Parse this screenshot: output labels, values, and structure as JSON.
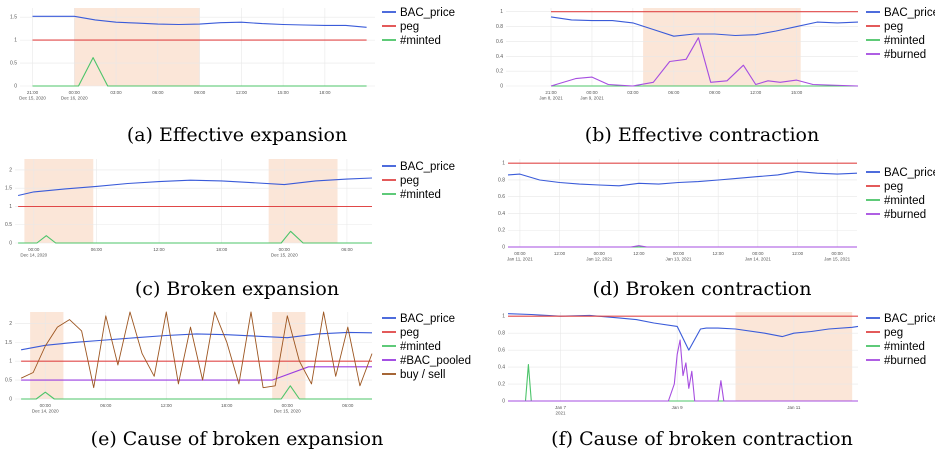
{
  "colors": {
    "BAC_price": "#3a5bd9",
    "peg": "#e04848",
    "minted": "#4cc46a",
    "burned": "#a64de0",
    "BAC_pooled": "#9a3de0",
    "buy_sell": "#9c5520",
    "shade": "#fbe6d8",
    "grid": "#e8e8e8"
  },
  "chart_data": [
    {
      "id": "a",
      "type": "line",
      "caption": "(a) Effective expansion",
      "ylim": [
        0,
        1.7
      ],
      "yticks": [
        "0",
        "0.5",
        "1",
        "1.5"
      ],
      "xticks": [
        "21:00\nDec 15, 2020",
        "00:00\nDec 16, 2020",
        "03:00",
        "06:00",
        "09:00",
        "12:00",
        "15:00",
        "18:00"
      ],
      "shaded": [
        [
          1,
          4
        ]
      ],
      "legend": [
        "BAC_price",
        "peg",
        "#minted"
      ],
      "series": [
        {
          "name": "BAC_price",
          "x": [
            0,
            1,
            1.5,
            2,
            2.5,
            3,
            3.5,
            4,
            4.5,
            5,
            5.5,
            6,
            6.5,
            7,
            7.5,
            8
          ],
          "y": [
            1.52,
            1.52,
            1.44,
            1.39,
            1.37,
            1.35,
            1.34,
            1.35,
            1.38,
            1.39,
            1.36,
            1.34,
            1.33,
            1.32,
            1.32,
            1.28
          ]
        },
        {
          "name": "peg",
          "x": [
            0,
            8
          ],
          "y": [
            1.0,
            1.0
          ]
        },
        {
          "name": "#minted",
          "x": [
            0,
            1.1,
            1.45,
            1.8,
            8
          ],
          "y": [
            0,
            0,
            0.62,
            0,
            0
          ]
        }
      ]
    },
    {
      "id": "b",
      "type": "line",
      "caption": "(b) Effective contraction",
      "ylim": [
        0,
        1.05
      ],
      "yticks": [
        "0",
        "0.2",
        "0.4",
        "0.6",
        "0.8",
        "1"
      ],
      "xticks": [
        "21:00\nJan 8, 2021",
        "00:00\nJan 9, 2021",
        "03:00",
        "06:00",
        "09:00",
        "12:00",
        "15:00"
      ],
      "shaded": [
        [
          2.25,
          6.1
        ]
      ],
      "legend": [
        "BAC_price",
        "peg",
        "#minted",
        "#burned"
      ],
      "series": [
        {
          "name": "BAC_price",
          "x": [
            0,
            0.5,
            1,
            1.5,
            2,
            2.5,
            3,
            3.5,
            4,
            4.5,
            5,
            5.5,
            6,
            6.5,
            7,
            7.5
          ],
          "y": [
            0.93,
            0.89,
            0.88,
            0.88,
            0.85,
            0.76,
            0.67,
            0.7,
            0.7,
            0.68,
            0.69,
            0.74,
            0.8,
            0.86,
            0.85,
            0.86
          ]
        },
        {
          "name": "peg",
          "x": [
            0,
            7.5
          ],
          "y": [
            1.0,
            1.0
          ]
        },
        {
          "name": "#minted",
          "x": [
            0,
            7.5
          ],
          "y": [
            0,
            0
          ]
        },
        {
          "name": "#burned",
          "x": [
            0,
            0.6,
            1.0,
            1.4,
            2.0,
            2.5,
            2.9,
            3.3,
            3.6,
            3.9,
            4.3,
            4.7,
            5.0,
            5.3,
            5.6,
            6.0,
            6.4,
            7.5
          ],
          "y": [
            0,
            0.1,
            0.12,
            0.02,
            0.0,
            0.05,
            0.33,
            0.36,
            0.65,
            0.05,
            0.07,
            0.28,
            0.02,
            0.07,
            0.05,
            0.08,
            0.02,
            0.0
          ]
        }
      ]
    },
    {
      "id": "c",
      "type": "line",
      "caption": "(c) Broken expansion",
      "ylim": [
        0,
        2.3
      ],
      "yticks": [
        "0",
        "0.5",
        "1",
        "1.5",
        "2"
      ],
      "xticks": [
        "00:00\nDec 14, 2020",
        "06:00",
        "12:00",
        "18:00",
        "00:00\nDec 15, 2020",
        "06:00"
      ],
      "shaded": [
        [
          -0.15,
          0.95
        ],
        [
          3.75,
          4.85
        ]
      ],
      "legend": [
        "BAC_price",
        "peg",
        "#minted"
      ],
      "series": [
        {
          "name": "BAC_price",
          "x": [
            -0.25,
            0,
            0.5,
            1,
            1.5,
            2,
            2.5,
            3,
            3.5,
            4,
            4.5,
            5,
            5.4
          ],
          "y": [
            1.3,
            1.4,
            1.48,
            1.55,
            1.63,
            1.68,
            1.72,
            1.7,
            1.65,
            1.6,
            1.7,
            1.75,
            1.78
          ]
        },
        {
          "name": "peg",
          "x": [
            -0.25,
            5.4
          ],
          "y": [
            1.0,
            1.0
          ]
        },
        {
          "name": "#minted",
          "x": [
            -0.25,
            0.05,
            0.2,
            0.35,
            3.95,
            4.1,
            4.3,
            5.4
          ],
          "y": [
            0,
            0,
            0.2,
            0,
            0,
            0.32,
            0,
            0
          ]
        }
      ]
    },
    {
      "id": "d",
      "type": "line",
      "caption": "(d) Broken contraction",
      "ylim": [
        0,
        1.05
      ],
      "yticks": [
        "0",
        "0.2",
        "0.4",
        "0.6",
        "0.8",
        "1"
      ],
      "xticks": [
        "00:00\nJan 11, 2021",
        "12:00",
        "00:00\nJan 12, 2021",
        "12:00",
        "00:00\nJan 13, 2021",
        "12:00",
        "00:00\nJan 14, 2021",
        "12:00",
        "00:00\nJan 15, 2021"
      ],
      "shaded": [],
      "legend": [
        "BAC_price",
        "peg",
        "#minted",
        "#burned"
      ],
      "series": [
        {
          "name": "BAC_price",
          "x": [
            -0.3,
            0,
            0.5,
            1,
            1.5,
            2,
            2.5,
            3,
            3.5,
            4,
            4.5,
            5,
            5.5,
            6,
            6.5,
            7,
            7.5,
            8,
            8.5
          ],
          "y": [
            0.86,
            0.87,
            0.8,
            0.77,
            0.75,
            0.74,
            0.73,
            0.76,
            0.75,
            0.77,
            0.78,
            0.8,
            0.82,
            0.84,
            0.86,
            0.9,
            0.88,
            0.87,
            0.88
          ]
        },
        {
          "name": "peg",
          "x": [
            -0.3,
            8.5
          ],
          "y": [
            1.0,
            1.0
          ]
        },
        {
          "name": "#minted",
          "x": [
            -0.3,
            8.5
          ],
          "y": [
            0,
            0
          ]
        },
        {
          "name": "#burned",
          "x": [
            -0.3,
            2.8,
            3.0,
            3.2,
            8.5
          ],
          "y": [
            0,
            0,
            0.015,
            0,
            0
          ]
        }
      ]
    },
    {
      "id": "e",
      "type": "line",
      "caption": "(e) Cause of broken expansion",
      "ylim": [
        0,
        2.3
      ],
      "yticks": [
        "0",
        "0.5",
        "1",
        "1.5",
        "2"
      ],
      "xticks": [
        "00:00\nDec 14, 2020",
        "06:00",
        "12:00",
        "18:00",
        "00:00\nDec 15, 2020",
        "06:00"
      ],
      "shaded": [
        [
          -0.25,
          0.3
        ],
        [
          3.75,
          4.3
        ]
      ],
      "legend": [
        "BAC_price",
        "peg",
        "#minted",
        "#BAC_pooled",
        "buy / sell"
      ],
      "series": [
        {
          "name": "BAC_price",
          "x": [
            -0.4,
            0,
            0.5,
            1,
            1.5,
            2,
            2.5,
            3,
            3.5,
            4,
            4.5,
            5,
            5.4
          ],
          "y": [
            1.3,
            1.42,
            1.5,
            1.56,
            1.62,
            1.68,
            1.72,
            1.7,
            1.66,
            1.62,
            1.72,
            1.76,
            1.75
          ]
        },
        {
          "name": "peg",
          "x": [
            -0.4,
            5.4
          ],
          "y": [
            1.0,
            1.0
          ]
        },
        {
          "name": "#minted",
          "x": [
            -0.4,
            -0.15,
            0.0,
            0.15,
            3.9,
            4.05,
            4.2,
            5.4
          ],
          "y": [
            0,
            0,
            0.18,
            0,
            0,
            0.35,
            0,
            0
          ]
        },
        {
          "name": "#BAC_pooled",
          "x": [
            -0.4,
            0.3,
            3.75,
            4.35,
            5.4
          ],
          "y": [
            0.5,
            0.5,
            0.5,
            0.85,
            0.85
          ]
        },
        {
          "name": "buy / sell",
          "x": [
            -0.4,
            -0.2,
            0.0,
            0.2,
            0.4,
            0.6,
            0.8,
            1.0,
            1.2,
            1.4,
            1.6,
            1.8,
            2.0,
            2.2,
            2.4,
            2.6,
            2.8,
            3.0,
            3.2,
            3.4,
            3.6,
            3.8,
            4.0,
            4.2,
            4.4,
            4.6,
            4.8,
            5.0,
            5.2,
            5.4
          ],
          "y": [
            0.55,
            0.7,
            1.4,
            1.9,
            2.1,
            1.8,
            0.3,
            2.2,
            0.9,
            2.3,
            1.2,
            0.6,
            2.3,
            0.4,
            1.9,
            0.5,
            2.3,
            1.5,
            0.4,
            2.3,
            0.3,
            0.35,
            2.2,
            1.0,
            0.4,
            2.3,
            0.6,
            1.9,
            0.35,
            1.2
          ]
        }
      ]
    },
    {
      "id": "f",
      "type": "line",
      "caption": "(f) Cause of broken contraction",
      "ylim": [
        0,
        1.05
      ],
      "yticks": [
        "0",
        "0.2",
        "0.4",
        "0.6",
        "0.8",
        "1"
      ],
      "xticks": [
        "Jan 7\n2021",
        "Jan 9",
        "Jan 11",
        "Jan 13",
        "Jan 15"
      ],
      "shaded": [
        [
          2.0,
          4.0
        ]
      ],
      "legend": [
        "BAC_price",
        "peg",
        "#minted",
        "#burned"
      ],
      "series": [
        {
          "name": "BAC_price",
          "x": [
            -1.9,
            -1.5,
            -1,
            -0.5,
            0,
            0.3,
            0.6,
            1,
            1.2,
            1.4,
            1.5,
            1.7,
            2,
            2.5,
            2.8,
            3,
            3.3,
            3.6,
            4,
            4.1
          ],
          "y": [
            1.03,
            1.02,
            1.0,
            1.01,
            0.98,
            0.96,
            0.92,
            0.88,
            0.6,
            0.85,
            0.86,
            0.86,
            0.85,
            0.8,
            0.76,
            0.8,
            0.82,
            0.85,
            0.87,
            0.88
          ]
        },
        {
          "name": "peg",
          "x": [
            -1.9,
            4.1
          ],
          "y": [
            1.0,
            1.0
          ]
        },
        {
          "name": "#minted",
          "x": [
            -1.9,
            -1.6,
            -1.55,
            -1.5,
            4.1
          ],
          "y": [
            0,
            0,
            0.43,
            0,
            0
          ]
        },
        {
          "name": "#burned",
          "x": [
            -1.9,
            0.85,
            0.95,
            1.0,
            1.05,
            1.1,
            1.15,
            1.2,
            1.25,
            1.3,
            1.7,
            1.75,
            1.8,
            4.1
          ],
          "y": [
            0,
            0,
            0.2,
            0.55,
            0.72,
            0.3,
            0.45,
            0.15,
            0.35,
            0,
            0,
            0.24,
            0,
            0
          ]
        }
      ]
    }
  ]
}
